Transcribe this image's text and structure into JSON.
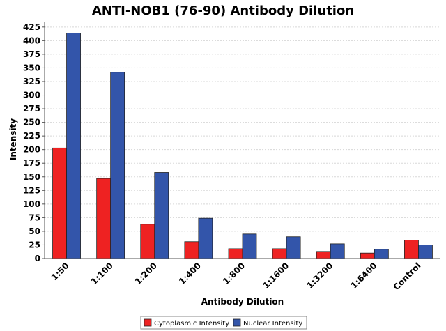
{
  "chart_data": {
    "type": "bar",
    "title": "ANTI-NOB1 (76-90) Antibody Dilution",
    "xlabel": "Antibody Dilution",
    "ylabel": "Intensity",
    "categories": [
      "1:50",
      "1:100",
      "1:200",
      "1:400",
      "1:800",
      "1:1600",
      "1:3200",
      "1:6400",
      "Control"
    ],
    "series": [
      {
        "name": "Cytoplasmic Intensity",
        "color": "#ee2222",
        "values": [
          203,
          147,
          63,
          31,
          18,
          18,
          13,
          10,
          34
        ]
      },
      {
        "name": "Nuclear Intensity",
        "color": "#3355aa",
        "values": [
          414,
          342,
          158,
          74,
          45,
          40,
          27,
          17,
          25
        ]
      }
    ],
    "yticks": [
      0,
      25,
      50,
      75,
      100,
      125,
      150,
      175,
      200,
      225,
      250,
      275,
      300,
      325,
      350,
      375,
      400,
      425
    ],
    "ylim": [
      0,
      435
    ],
    "grid": true,
    "legend": "bottom-center"
  }
}
